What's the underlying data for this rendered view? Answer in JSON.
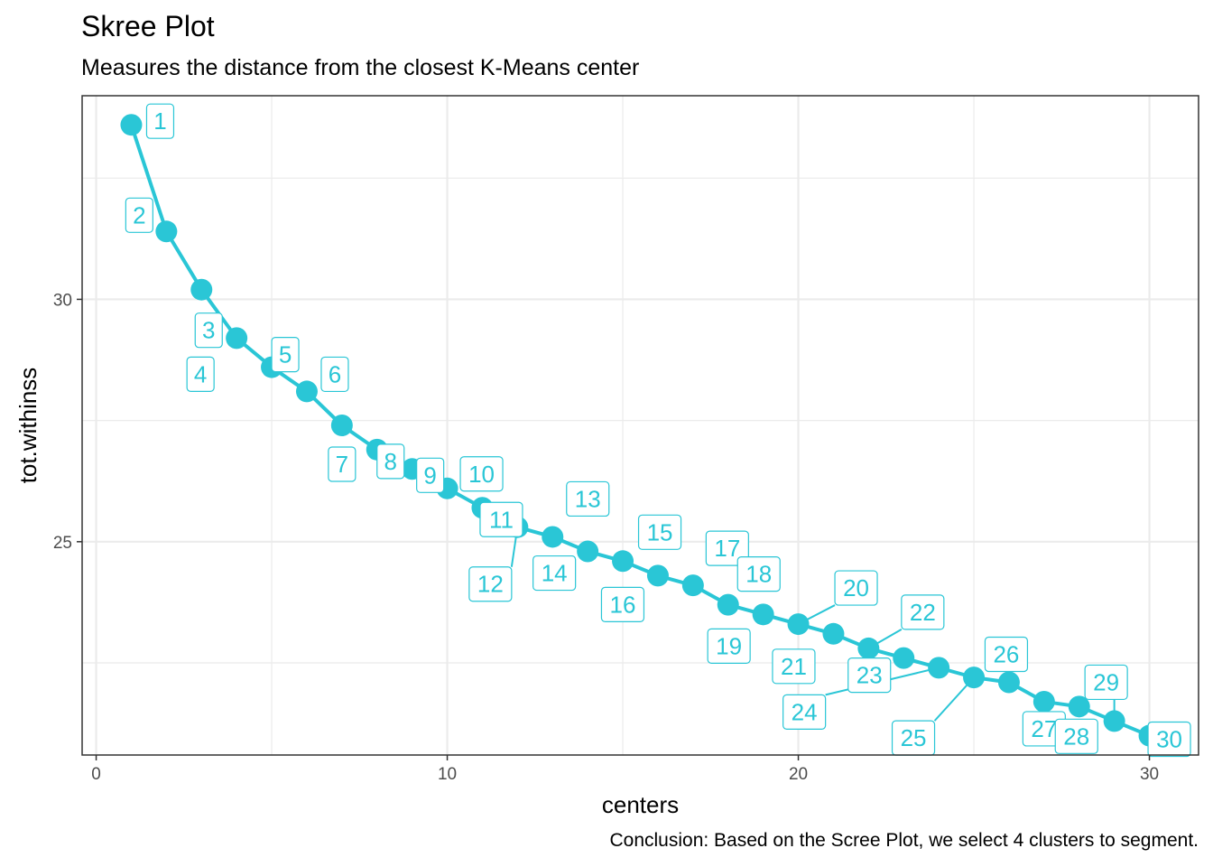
{
  "chart_data": {
    "type": "line",
    "title": "Skree Plot",
    "subtitle": "Measures the distance from the closest K-Means center",
    "caption": "Conclusion: Based on the Scree Plot, we select 4 clusters to segment.",
    "xlabel": "centers",
    "ylabel": "tot.withinss",
    "xlim": [
      -0.4,
      31.4
    ],
    "ylim": [
      20.6,
      34.2
    ],
    "x_ticks": [
      0,
      10,
      20,
      30
    ],
    "y_ticks": [
      25,
      30
    ],
    "grid": true,
    "color": "#2AC6D6",
    "points": [
      {
        "x": 1,
        "y": 33.6,
        "label": "1"
      },
      {
        "x": 2,
        "y": 31.4,
        "label": "2"
      },
      {
        "x": 3,
        "y": 30.2,
        "label": "3"
      },
      {
        "x": 4,
        "y": 29.2,
        "label": "4"
      },
      {
        "x": 5,
        "y": 28.6,
        "label": "5"
      },
      {
        "x": 6,
        "y": 28.1,
        "label": "6"
      },
      {
        "x": 7,
        "y": 27.4,
        "label": "7"
      },
      {
        "x": 8,
        "y": 26.9,
        "label": "8"
      },
      {
        "x": 9,
        "y": 26.5,
        "label": "9"
      },
      {
        "x": 10,
        "y": 26.1,
        "label": "10"
      },
      {
        "x": 11,
        "y": 25.7,
        "label": "11"
      },
      {
        "x": 12,
        "y": 25.3,
        "label": "12"
      },
      {
        "x": 13,
        "y": 25.1,
        "label": "13"
      },
      {
        "x": 14,
        "y": 24.8,
        "label": "14"
      },
      {
        "x": 15,
        "y": 24.6,
        "label": "15"
      },
      {
        "x": 16,
        "y": 24.3,
        "label": "16"
      },
      {
        "x": 17,
        "y": 24.1,
        "label": "17"
      },
      {
        "x": 18,
        "y": 23.7,
        "label": "18"
      },
      {
        "x": 19,
        "y": 23.5,
        "label": "19"
      },
      {
        "x": 20,
        "y": 23.3,
        "label": "20"
      },
      {
        "x": 21,
        "y": 23.1,
        "label": "21"
      },
      {
        "x": 22,
        "y": 22.8,
        "label": "22"
      },
      {
        "x": 23,
        "y": 22.6,
        "label": "23"
      },
      {
        "x": 24,
        "y": 22.4,
        "label": "24"
      },
      {
        "x": 25,
        "y": 22.2,
        "label": "25"
      },
      {
        "x": 26,
        "y": 22.1,
        "label": "26"
      },
      {
        "x": 27,
        "y": 21.7,
        "label": "27"
      },
      {
        "x": 28,
        "y": 21.6,
        "label": "28"
      },
      {
        "x": 29,
        "y": 21.3,
        "label": "29"
      },
      {
        "x": 30,
        "y": 21.0,
        "label": "30"
      }
    ]
  }
}
